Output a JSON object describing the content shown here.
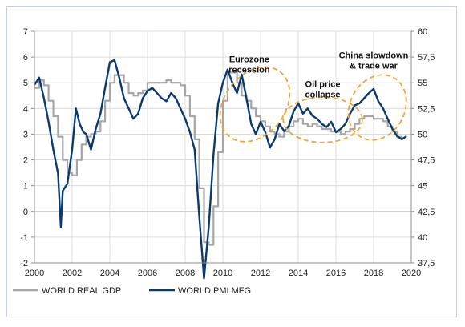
{
  "chart_data": {
    "type": "line",
    "title": "",
    "xlabel": "",
    "ylabel_left": "",
    "ylabel_right": "",
    "xlim": [
      2000,
      2020
    ],
    "ylim_left": [
      -2,
      7
    ],
    "ylim_right": [
      37.5,
      60
    ],
    "grid": true,
    "legend_placement": "bottom-left",
    "x_ticks": [
      "2000",
      "2002",
      "2004",
      "2006",
      "2008",
      "2010",
      "2012",
      "2014",
      "2016",
      "2018",
      "2020"
    ],
    "y_left_ticks": [
      "-2",
      "-1",
      "0",
      "1",
      "2",
      "3",
      "4",
      "5",
      "6",
      "7"
    ],
    "y_right_ticks": [
      "37,5",
      "40",
      "42,5",
      "45",
      "47,5",
      "50",
      "52,5",
      "55",
      "57,5",
      "60"
    ],
    "series": [
      {
        "name": "WORLD REAL GDP",
        "axis": "left",
        "color": "#a6a6a6",
        "points": [
          [
            2000.0,
            4.8
          ],
          [
            2000.25,
            5.1
          ],
          [
            2000.5,
            4.9
          ],
          [
            2000.75,
            4.3
          ],
          [
            2001.0,
            3.7
          ],
          [
            2001.25,
            2.9
          ],
          [
            2001.5,
            2.0
          ],
          [
            2001.75,
            1.5
          ],
          [
            2002.0,
            1.4
          ],
          [
            2002.25,
            2.0
          ],
          [
            2002.5,
            2.6
          ],
          [
            2002.75,
            2.9
          ],
          [
            2003.0,
            3.0
          ],
          [
            2003.25,
            3.1
          ],
          [
            2003.5,
            3.5
          ],
          [
            2003.75,
            4.3
          ],
          [
            2004.0,
            5.0
          ],
          [
            2004.25,
            5.3
          ],
          [
            2004.5,
            5.3
          ],
          [
            2004.75,
            5.0
          ],
          [
            2005.0,
            4.6
          ],
          [
            2005.25,
            4.5
          ],
          [
            2005.5,
            4.6
          ],
          [
            2005.75,
            4.7
          ],
          [
            2006.0,
            5.0
          ],
          [
            2006.25,
            5.0
          ],
          [
            2006.5,
            5.0
          ],
          [
            2006.75,
            5.0
          ],
          [
            2007.0,
            5.1
          ],
          [
            2007.25,
            5.0
          ],
          [
            2007.5,
            5.0
          ],
          [
            2007.75,
            4.9
          ],
          [
            2008.0,
            4.5
          ],
          [
            2008.25,
            3.7
          ],
          [
            2008.5,
            2.8
          ],
          [
            2008.75,
            0.9
          ],
          [
            2009.0,
            -1.2
          ],
          [
            2009.25,
            -1.3
          ],
          [
            2009.5,
            0.2
          ],
          [
            2009.75,
            2.3
          ],
          [
            2010.0,
            4.3
          ],
          [
            2010.25,
            5.4
          ],
          [
            2010.5,
            5.4
          ],
          [
            2010.75,
            5.0
          ],
          [
            2011.0,
            4.5
          ],
          [
            2011.25,
            4.3
          ],
          [
            2011.5,
            4.0
          ],
          [
            2011.75,
            3.7
          ],
          [
            2012.0,
            3.5
          ],
          [
            2012.25,
            3.3
          ],
          [
            2012.5,
            3.1
          ],
          [
            2012.75,
            3.0
          ],
          [
            2013.0,
            2.9
          ],
          [
            2013.25,
            3.1
          ],
          [
            2013.5,
            3.3
          ],
          [
            2013.75,
            3.5
          ],
          [
            2014.0,
            3.6
          ],
          [
            2014.25,
            3.4
          ],
          [
            2014.5,
            3.3
          ],
          [
            2014.75,
            3.4
          ],
          [
            2015.0,
            3.3
          ],
          [
            2015.25,
            3.2
          ],
          [
            2015.5,
            3.2
          ],
          [
            2015.75,
            3.1
          ],
          [
            2016.0,
            3.1
          ],
          [
            2016.25,
            3.0
          ],
          [
            2016.5,
            3.1
          ],
          [
            2016.75,
            3.2
          ],
          [
            2017.0,
            3.4
          ],
          [
            2017.25,
            3.6
          ],
          [
            2017.5,
            3.7
          ],
          [
            2017.75,
            3.7
          ],
          [
            2018.0,
            3.6
          ],
          [
            2018.25,
            3.6
          ],
          [
            2018.5,
            3.5
          ],
          [
            2018.75,
            3.3
          ],
          [
            2019.0,
            3.1
          ],
          [
            2019.25,
            2.9
          ],
          [
            2019.5,
            2.8
          ]
        ]
      },
      {
        "name": "WORLD PMI MFG",
        "axis": "right",
        "color": "#0b3a6e",
        "points": [
          [
            2000.0,
            54.8
          ],
          [
            2000.25,
            55.5
          ],
          [
            2000.5,
            53.5
          ],
          [
            2000.75,
            51.2
          ],
          [
            2001.0,
            48.5
          ],
          [
            2001.25,
            46.2
          ],
          [
            2001.4,
            41.0
          ],
          [
            2001.5,
            44.5
          ],
          [
            2001.75,
            45.2
          ],
          [
            2002.0,
            48.5
          ],
          [
            2002.2,
            52.5
          ],
          [
            2002.4,
            51.0
          ],
          [
            2002.6,
            50.2
          ],
          [
            2002.75,
            50.0
          ],
          [
            2003.0,
            48.5
          ],
          [
            2003.25,
            50.5
          ],
          [
            2003.5,
            52.0
          ],
          [
            2003.75,
            54.5
          ],
          [
            2004.0,
            57.0
          ],
          [
            2004.25,
            57.2
          ],
          [
            2004.5,
            55.5
          ],
          [
            2004.75,
            53.5
          ],
          [
            2005.0,
            52.5
          ],
          [
            2005.25,
            51.5
          ],
          [
            2005.5,
            52.0
          ],
          [
            2005.75,
            53.5
          ],
          [
            2006.0,
            54.2
          ],
          [
            2006.25,
            54.5
          ],
          [
            2006.5,
            54.0
          ],
          [
            2006.75,
            53.5
          ],
          [
            2007.0,
            53.2
          ],
          [
            2007.25,
            54.0
          ],
          [
            2007.5,
            53.5
          ],
          [
            2007.75,
            52.5
          ],
          [
            2008.0,
            51.5
          ],
          [
            2008.25,
            50.2
          ],
          [
            2008.5,
            48.5
          ],
          [
            2008.75,
            42.0
          ],
          [
            2009.0,
            36.0
          ],
          [
            2009.25,
            41.0
          ],
          [
            2009.5,
            48.0
          ],
          [
            2009.75,
            53.0
          ],
          [
            2010.0,
            55.0
          ],
          [
            2010.25,
            56.3
          ],
          [
            2010.5,
            55.0
          ],
          [
            2010.75,
            54.0
          ],
          [
            2011.0,
            55.8
          ],
          [
            2011.25,
            53.5
          ],
          [
            2011.5,
            51.0
          ],
          [
            2011.75,
            50.0
          ],
          [
            2012.0,
            51.2
          ],
          [
            2012.25,
            50.2
          ],
          [
            2012.5,
            48.7
          ],
          [
            2012.75,
            49.5
          ],
          [
            2013.0,
            51.0
          ],
          [
            2013.25,
            50.3
          ],
          [
            2013.5,
            50.8
          ],
          [
            2013.75,
            52.2
          ],
          [
            2014.0,
            53.0
          ],
          [
            2014.25,
            52.0
          ],
          [
            2014.5,
            52.5
          ],
          [
            2014.75,
            51.8
          ],
          [
            2015.0,
            51.5
          ],
          [
            2015.25,
            51.0
          ],
          [
            2015.5,
            50.7
          ],
          [
            2015.75,
            51.2
          ],
          [
            2016.0,
            50.2
          ],
          [
            2016.25,
            50.5
          ],
          [
            2016.5,
            51.0
          ],
          [
            2016.75,
            52.0
          ],
          [
            2017.0,
            52.8
          ],
          [
            2017.25,
            53.0
          ],
          [
            2017.5,
            53.5
          ],
          [
            2017.75,
            54.0
          ],
          [
            2018.0,
            54.4
          ],
          [
            2018.25,
            53.2
          ],
          [
            2018.5,
            52.5
          ],
          [
            2018.75,
            51.5
          ],
          [
            2019.0,
            50.5
          ],
          [
            2019.25,
            49.8
          ],
          [
            2019.5,
            49.5
          ],
          [
            2019.75,
            49.8
          ]
        ]
      }
    ],
    "annotations": [
      {
        "label_lines": [
          "Eurozone",
          "recession"
        ],
        "x": 2011.4,
        "y_right": 57.0,
        "ellipse": {
          "cx": 2011.7,
          "cy_right": 52.9,
          "rx_years": 1.6,
          "ry_right": 4.0,
          "angle": 38
        }
      },
      {
        "label_lines": [
          "Oil price",
          "collapse"
        ],
        "x": 2015.3,
        "y_right": 54.6,
        "ellipse": {
          "cx": 2015.3,
          "cy_right": 51.4,
          "rx_years": 2.1,
          "ry_right": 2.2,
          "angle": 0
        }
      },
      {
        "label_lines": [
          "China slowdown",
          "& trade war"
        ],
        "x": 2018.0,
        "y_right": 57.4,
        "ellipse": {
          "cx": 2018.2,
          "cy_right": 52.6,
          "rx_years": 1.45,
          "ry_right": 3.3,
          "angle": 28
        }
      }
    ]
  }
}
